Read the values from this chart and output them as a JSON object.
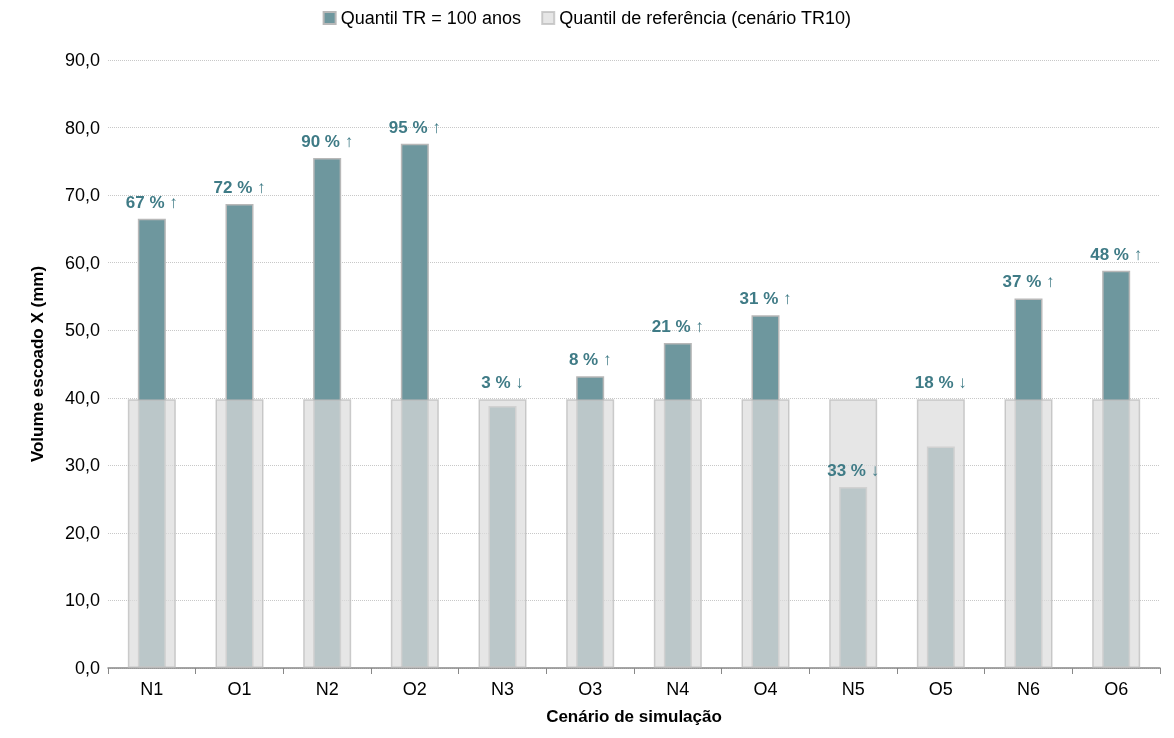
{
  "chart_data": {
    "type": "bar",
    "xlabel": "Cenário de simulação",
    "ylabel": "Volume escoado X (mm)",
    "categories": [
      "N1",
      "O1",
      "N2",
      "O2",
      "N3",
      "O3",
      "N4",
      "O4",
      "N5",
      "O5",
      "N6",
      "O6"
    ],
    "series": [
      {
        "name": "Quantil TR = 100 anos",
        "color": "#6e979e",
        "values": [
          66.5,
          68.7,
          75.5,
          77.6,
          38.8,
          43.2,
          48.1,
          52.2,
          26.8,
          32.8,
          54.7,
          58.8
        ]
      },
      {
        "name": "Quantil de referência (cenário TR10)",
        "color": "#dcdcdc",
        "values": [
          39.8,
          39.8,
          39.8,
          39.8,
          39.8,
          39.8,
          39.8,
          39.8,
          39.8,
          39.8,
          39.8,
          39.8
        ]
      }
    ],
    "annotations": [
      {
        "text": "67 % ↑",
        "x": "N1",
        "y": 66.5
      },
      {
        "text": "72 % ↑",
        "x": "O1",
        "y": 68.7
      },
      {
        "text": "90 % ↑",
        "x": "N2",
        "y": 75.5
      },
      {
        "text": "95 % ↑",
        "x": "O2",
        "y": 77.6
      },
      {
        "text": "3 % ↓",
        "x": "N3",
        "y": 39.8
      },
      {
        "text": "8 % ↑",
        "x": "O3",
        "y": 43.2
      },
      {
        "text": "21 % ↑",
        "x": "N4",
        "y": 48.1
      },
      {
        "text": "31 % ↑",
        "x": "O4",
        "y": 52.2
      },
      {
        "text": "33 % ↓",
        "x": "N5",
        "y": 26.8
      },
      {
        "text": "18 % ↓",
        "x": "O5",
        "y": 39.8
      },
      {
        "text": "37 % ↑",
        "x": "N6",
        "y": 54.7
      },
      {
        "text": "48 % ↑",
        "x": "O6",
        "y": 58.8
      }
    ],
    "ylim": [
      0,
      90
    ],
    "yticks": [
      {
        "value": 0,
        "label": "0,0"
      },
      {
        "value": 10,
        "label": "10,0"
      },
      {
        "value": 20,
        "label": "20,0"
      },
      {
        "value": 30,
        "label": "30,0"
      },
      {
        "value": 40,
        "label": "40,0"
      },
      {
        "value": 50,
        "label": "50,0"
      },
      {
        "value": 60,
        "label": "60,0"
      },
      {
        "value": 70,
        "label": "70,0"
      },
      {
        "value": 80,
        "label": "80,0"
      },
      {
        "value": 90,
        "label": "90,0"
      }
    ],
    "grid": "y",
    "legend": "top"
  }
}
